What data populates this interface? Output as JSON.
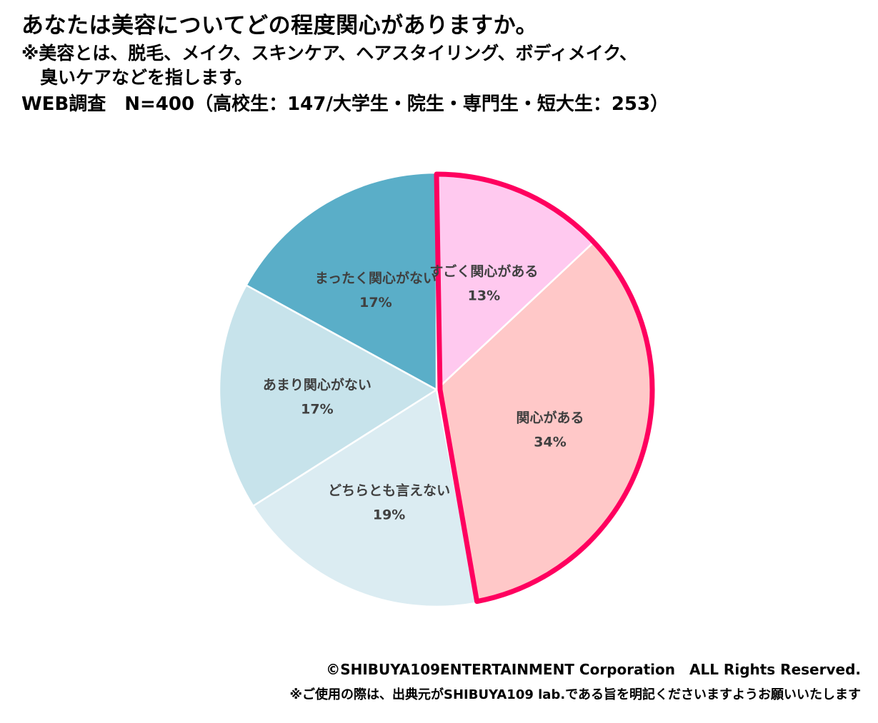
{
  "header": {
    "title": "あなたは美容についてどの程度関心がありますか。",
    "note_line1": "※美容とは、脱毛、メイク、スキンケア、ヘアスタイリング、ボディメイク、",
    "note_line2": "臭いケアなどを指します。",
    "survey": "WEB調査　N=400（高校生：147/大学生・院生・専門生・短大生：253）"
  },
  "chart_data": {
    "type": "pie",
    "start_angle": "12 o'clock",
    "direction": "clockwise",
    "highlight": {
      "slices": [
        "すごく関心がある",
        "関心がある"
      ],
      "outline_color": "#ff005f"
    },
    "slices": [
      {
        "label": "すごく関心がある",
        "value": 13,
        "value_label": "13%",
        "color": "#ffc9ef"
      },
      {
        "label": "関心がある",
        "value": 34,
        "value_label": "34%",
        "color": "#ffc8c8"
      },
      {
        "label": "どちらとも言えない",
        "value": 19,
        "value_label": "19%",
        "color": "#dbecf2"
      },
      {
        "label": "あまり関心がない",
        "value": 17,
        "value_label": "17%",
        "color": "#c7e3eb"
      },
      {
        "label": "まったく関心がない",
        "value": 17,
        "value_label": "17%",
        "color": "#5aaec8"
      }
    ]
  },
  "footer": {
    "copyright": "©SHIBUYA109ENTERTAINMENT Corporation　ALL Rights Reserved.",
    "usage_note": "※ご使用の際は、出典元がSHIBUYA109 lab.である旨を明記くださいますようお願いいたします"
  }
}
